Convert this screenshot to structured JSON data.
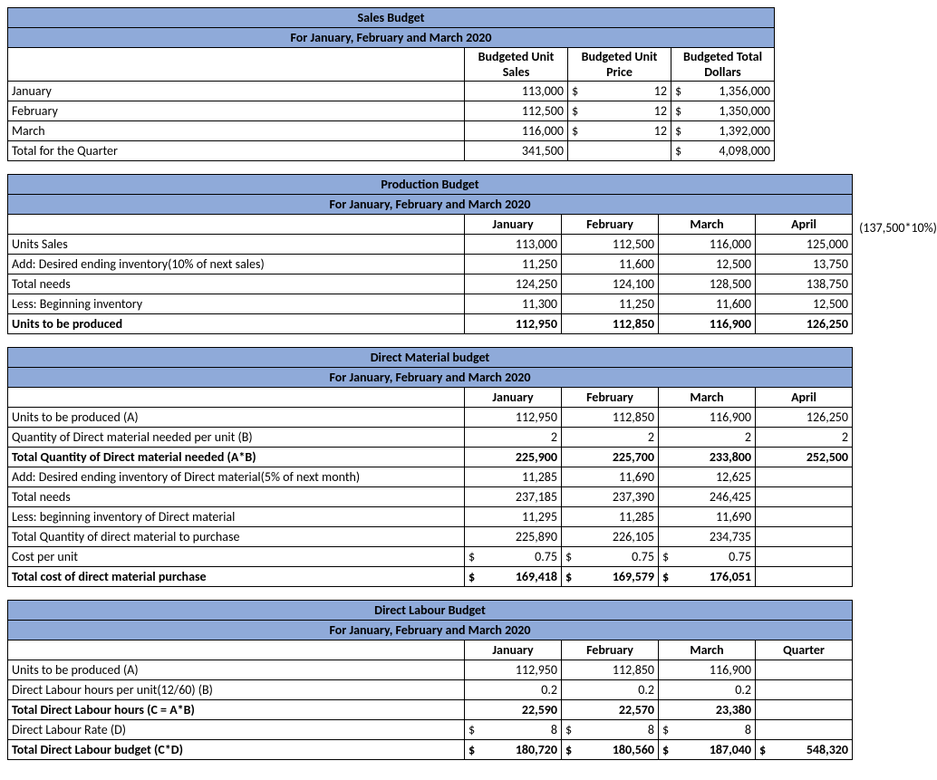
{
  "colors": {
    "header_bg": "#8faad9",
    "border": "#000000",
    "text": "#000000",
    "background": "#ffffff"
  },
  "subtitle_shared": "For January, February and March 2020",
  "sales_budget": {
    "title": "Sales Budget",
    "headers": {
      "c1_line1": "Budgeted Unit",
      "c1_line2": "Sales",
      "c2_line1": "Budgeted Unit",
      "c2_line2": "Price",
      "c3_line1": "Budgeted Total",
      "c3_line2": "Dollars"
    },
    "rows": [
      {
        "label": "January",
        "units": "113,000",
        "price": "12",
        "dollars": "1,356,000"
      },
      {
        "label": "February",
        "units": "112,500",
        "price": "12",
        "dollars": "1,350,000"
      },
      {
        "label": "March",
        "units": "116,000",
        "price": "12",
        "dollars": "1,392,000"
      }
    ],
    "total": {
      "label": "Total for the Quarter",
      "units": "341,500",
      "dollars": "4,098,000"
    }
  },
  "production_budget": {
    "title": "Production Budget",
    "col_headers": [
      "January",
      "February",
      "March",
      "April"
    ],
    "rows": {
      "units_sales": {
        "label": "Units Sales",
        "vals": [
          "113,000",
          "112,500",
          "116,000",
          "125,000"
        ]
      },
      "add_ending": {
        "label": "Add: Desired ending inventory(10% of next sales)",
        "vals": [
          "11,250",
          "11,600",
          "12,500",
          "13,750"
        ],
        "annot": "(137,500*10%)"
      },
      "total_needs": {
        "label": "Total needs",
        "vals": [
          "124,250",
          "124,100",
          "128,500",
          "138,750"
        ]
      },
      "less_begin": {
        "label": "Less: Beginning inventory",
        "vals": [
          "11,300",
          "11,250",
          "11,600",
          "12,500"
        ]
      },
      "units_produced": {
        "label": "Units to be produced",
        "vals": [
          "112,950",
          "112,850",
          "116,900",
          "126,250"
        ]
      }
    }
  },
  "direct_material": {
    "title": "Direct Material budget",
    "col_headers": [
      "January",
      "February",
      "March",
      "April"
    ],
    "rows": {
      "units_a": {
        "label": " Units to be produced (A)",
        "vals": [
          "112,950",
          "112,850",
          "116,900",
          "126,250"
        ]
      },
      "qty_b": {
        "label": "Quantity of Direct material needed per unit   (B)",
        "vals": [
          "2",
          "2",
          "2",
          "2"
        ]
      },
      "total_ab": {
        "label": "Total Quantity of Direct material needed (A*B)",
        "vals": [
          "225,900",
          "225,700",
          "233,800",
          "252,500"
        ]
      },
      "add_end": {
        "label": "Add: Desired ending inventory of Direct material(5% of next month)",
        "vals": [
          "11,285",
          "11,690",
          "12,625",
          ""
        ]
      },
      "total_needs": {
        "label": "Total needs",
        "vals": [
          "237,185",
          "237,390",
          "246,425",
          ""
        ]
      },
      "less_begin": {
        "label": "Less: beginning inventory of Direct material",
        "vals": [
          "11,295",
          "11,285",
          "11,690",
          ""
        ]
      },
      "total_purch": {
        "label": "Total Quantity of direct material to purchase",
        "vals": [
          "225,890",
          "226,105",
          "234,735",
          ""
        ]
      },
      "cost_unit": {
        "label": "Cost per unit",
        "vals": [
          "0.75",
          "0.75",
          "0.75",
          ""
        ]
      },
      "total_cost": {
        "label": "Total cost of direct material purchase",
        "vals": [
          "169,418",
          "169,579",
          "176,051",
          ""
        ]
      }
    }
  },
  "direct_labour": {
    "title": "Direct Labour Budget",
    "col_headers": [
      "January",
      "February",
      "March",
      "Quarter"
    ],
    "rows": {
      "units_a": {
        "label": "Units to be produced (A)",
        "vals": [
          "112,950",
          "112,850",
          "116,900",
          ""
        ]
      },
      "hours_b": {
        "label": "Direct Labour hours per unit(12/60) (B)",
        "vals": [
          "0.2",
          "0.2",
          "0.2",
          ""
        ]
      },
      "total_c": {
        "label": "Total Direct Labour hours (C = A*B)",
        "vals": [
          "22,590",
          "22,570",
          "23,380",
          ""
        ]
      },
      "rate_d": {
        "label": "Direct Labour Rate (D)",
        "vals": [
          "8",
          "8",
          "8",
          ""
        ]
      },
      "total_cd": {
        "label": "Total Direct Labour budget (C*D)",
        "vals": [
          "180,720",
          "180,560",
          "187,040",
          "548,320"
        ]
      }
    }
  }
}
